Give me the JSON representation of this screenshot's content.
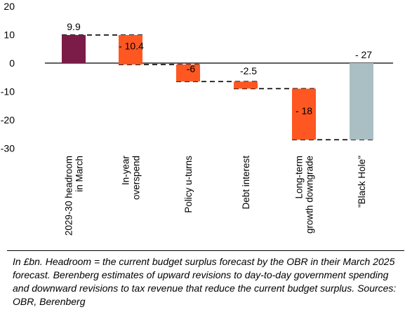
{
  "chart_data": {
    "type": "waterfall",
    "title": "",
    "xlabel": "",
    "ylabel": "",
    "ylim": [
      -30,
      20
    ],
    "yticks": [
      20,
      10,
      0,
      -10,
      -20,
      -30
    ],
    "grid": false,
    "legend": "none",
    "categories": [
      [
        "2029-30 headroom",
        "in March"
      ],
      [
        "In-year",
        "overspend"
      ],
      [
        "Policy u-turns"
      ],
      [
        "Debt interest"
      ],
      [
        "Long-term",
        "growth downgrade"
      ],
      [
        "\"Black Hole\""
      ]
    ],
    "bars": [
      {
        "start": 0,
        "end": 9.9,
        "label": "9.9",
        "color": "#7b1b47"
      },
      {
        "start": 9.9,
        "end": -0.5,
        "label": "- 10.4",
        "color": "#ff5722"
      },
      {
        "start": -0.5,
        "end": -6.5,
        "label": "-6",
        "color": "#ff5722"
      },
      {
        "start": -6.5,
        "end": -9.0,
        "label": "-2.5",
        "color": "#ff5722"
      },
      {
        "start": -9.0,
        "end": -27.0,
        "label": "- 18",
        "color": "#ff5722"
      },
      {
        "start": 0,
        "end": -27.0,
        "label": "- 27",
        "color": "#a9bfc3"
      }
    ]
  },
  "caption": "In £bn. Headroom = the current budget surplus forecast by the OBR in their March 2025 forecast. Berenberg estimates of upward revisions to day-to-day government spending and downward revisions to tax revenue that reduce the current budget surplus. Sources: OBR, Berenberg"
}
